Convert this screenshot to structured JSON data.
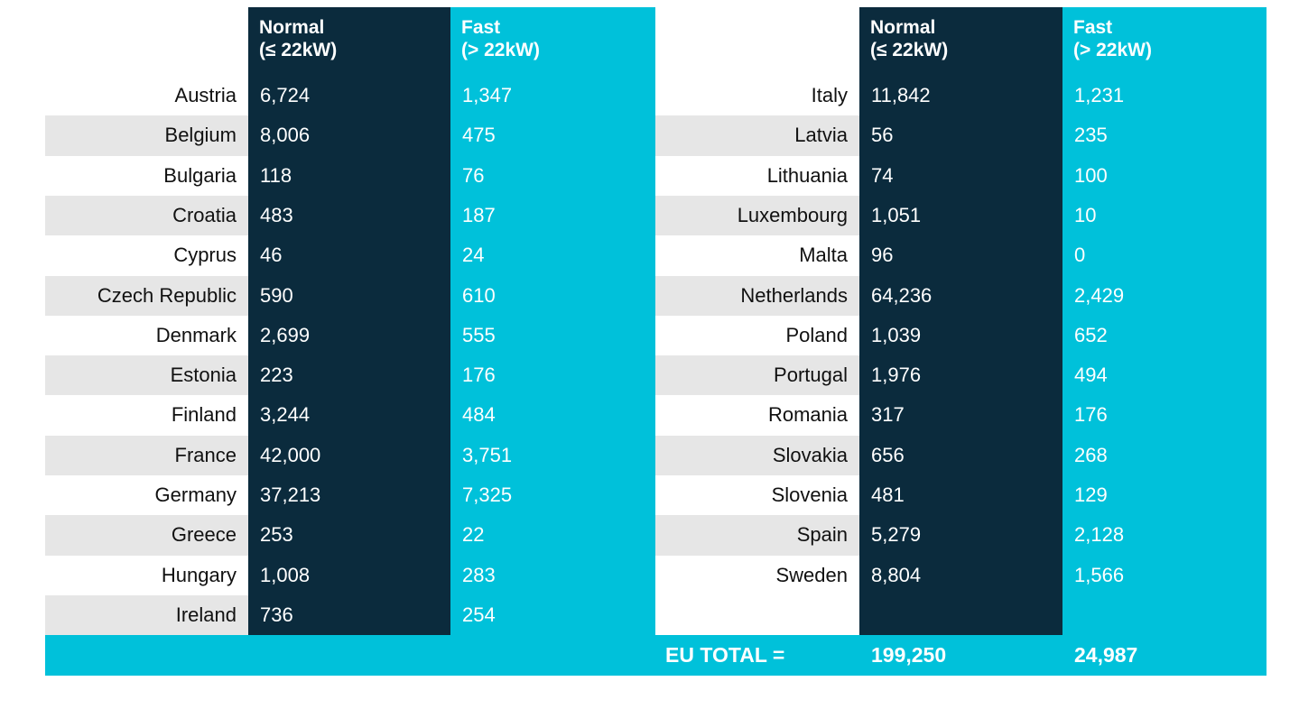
{
  "headers": {
    "normal": "Normal\n(≤ 22kW)",
    "fast": "Fast\n(> 22kW)"
  },
  "left_table": [
    {
      "country": "Austria",
      "normal": "6,724",
      "fast": "1,347"
    },
    {
      "country": "Belgium",
      "normal": "8,006",
      "fast": "475"
    },
    {
      "country": "Bulgaria",
      "normal": "118",
      "fast": "76"
    },
    {
      "country": "Croatia",
      "normal": "483",
      "fast": "187"
    },
    {
      "country": "Cyprus",
      "normal": "46",
      "fast": "24"
    },
    {
      "country": "Czech Republic",
      "normal": "590",
      "fast": "610"
    },
    {
      "country": "Denmark",
      "normal": "2,699",
      "fast": "555"
    },
    {
      "country": "Estonia",
      "normal": "223",
      "fast": "176"
    },
    {
      "country": "Finland",
      "normal": "3,244",
      "fast": "484"
    },
    {
      "country": "France",
      "normal": "42,000",
      "fast": "3,751"
    },
    {
      "country": "Germany",
      "normal": "37,213",
      "fast": "7,325"
    },
    {
      "country": "Greece",
      "normal": "253",
      "fast": "22"
    },
    {
      "country": "Hungary",
      "normal": "1,008",
      "fast": "283"
    },
    {
      "country": "Ireland",
      "normal": "736",
      "fast": "254"
    }
  ],
  "right_table": [
    {
      "country": "Italy",
      "normal": "11,842",
      "fast": "1,231"
    },
    {
      "country": "Latvia",
      "normal": "56",
      "fast": "235"
    },
    {
      "country": "Lithuania",
      "normal": "74",
      "fast": "100"
    },
    {
      "country": "Luxembourg",
      "normal": "1,051",
      "fast": "10"
    },
    {
      "country": "Malta",
      "normal": "96",
      "fast": "0"
    },
    {
      "country": "Netherlands",
      "normal": "64,236",
      "fast": "2,429"
    },
    {
      "country": "Poland",
      "normal": "1,039",
      "fast": "652"
    },
    {
      "country": "Portugal",
      "normal": "1,976",
      "fast": "494"
    },
    {
      "country": "Romania",
      "normal": "317",
      "fast": "176"
    },
    {
      "country": "Slovakia",
      "normal": "656",
      "fast": "268"
    },
    {
      "country": "Slovenia",
      "normal": "481",
      "fast": "129"
    },
    {
      "country": "Spain",
      "normal": "5,279",
      "fast": "2,128"
    },
    {
      "country": "Sweden",
      "normal": "8,804",
      "fast": "1,566"
    }
  ],
  "total": {
    "label": "EU TOTAL  =",
    "normal": "199,250",
    "fast": "24,987"
  },
  "colors": {
    "dark": "#0b2b3d",
    "cyan": "#00c1da",
    "stripe": "#e6e6e6"
  }
}
